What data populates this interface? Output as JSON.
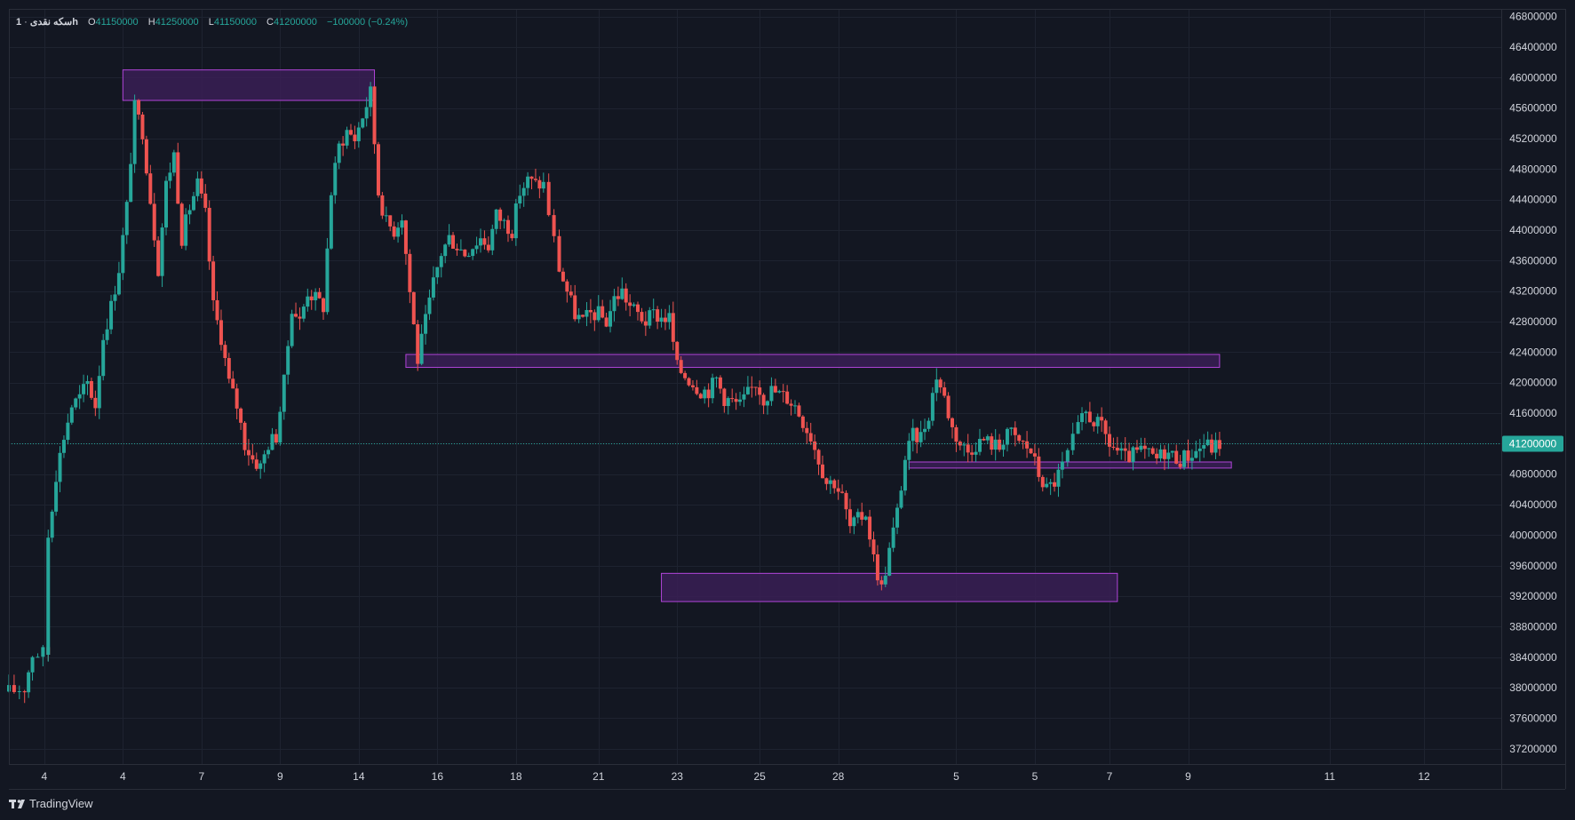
{
  "legend": {
    "symbol": "سکه نقدی",
    "timeframe": "1h",
    "o_label": "O",
    "o_value": "41150000",
    "h_label": "H",
    "h_value": "41250000",
    "l_label": "L",
    "l_value": "41150000",
    "c_label": "C",
    "c_value": "41200000",
    "change": "−100000 (−0.24%)"
  },
  "brand": {
    "name": "TradingView"
  },
  "colors": {
    "background": "#131722",
    "grid": "#1e2330",
    "up": "#26a69a",
    "down": "#ef5350",
    "zone_fill": "#3a1f55",
    "zone_stroke": "#b044d8",
    "axis_text": "#d1d4dc",
    "price_line": "#26a69a"
  },
  "chart_data": {
    "type": "candlestick",
    "y_axis": {
      "min": 37000000,
      "max": 46900000,
      "ticks": [
        37200000,
        37600000,
        38000000,
        38400000,
        38800000,
        39200000,
        39600000,
        40000000,
        40400000,
        40800000,
        41200000,
        41600000,
        42000000,
        42400000,
        42800000,
        43200000,
        43600000,
        44000000,
        44400000,
        44800000,
        45200000,
        45600000,
        46000000,
        46400000,
        46800000
      ],
      "tick_labels": [
        "37200000",
        "37600000",
        "38000000",
        "38400000",
        "38800000",
        "39200000",
        "39600000",
        "40000000",
        "40400000",
        "40800000",
        "41200000",
        "41600000",
        "42000000",
        "42400000",
        "42800000",
        "43200000",
        "43600000",
        "44000000",
        "44400000",
        "44800000",
        "45200000",
        "45600000",
        "46000000",
        "46400000",
        "46800000"
      ]
    },
    "x_axis": {
      "min": 0,
      "max": 190,
      "tick_labels": [
        "4",
        "4",
        "7",
        "9",
        "14",
        "16",
        "18",
        "21",
        "23",
        "25",
        "28",
        "5",
        "5",
        "7",
        "9",
        "11",
        "12"
      ],
      "tick_positions": [
        4.5,
        14.5,
        24.5,
        34.5,
        44.5,
        54.5,
        64.5,
        75,
        85,
        95.5,
        105.5,
        120.5,
        130.5,
        140,
        150,
        168,
        180
      ]
    },
    "last_price": {
      "value": 41200000,
      "label": "41200000"
    },
    "zones": [
      {
        "x_start": 14.5,
        "x_end": 46.5,
        "y_low": 45700000,
        "y_high": 46100000
      },
      {
        "x_start": 50.5,
        "x_end": 154,
        "y_low": 42200000,
        "y_high": 42370000
      },
      {
        "x_start": 114.5,
        "x_end": 155.5,
        "y_low": 40880000,
        "y_high": 40960000
      },
      {
        "x_start": 83,
        "x_end": 141,
        "y_low": 39130000,
        "y_high": 39500000
      }
    ],
    "key_points": [
      [
        0,
        37950000
      ],
      [
        2,
        38000000
      ],
      [
        3,
        38450000
      ],
      [
        5,
        38450000
      ],
      [
        5,
        40000000
      ],
      [
        6,
        40800000
      ],
      [
        7,
        41300000
      ],
      [
        8,
        41700000
      ],
      [
        9,
        41800000
      ],
      [
        10,
        42000000
      ],
      [
        11,
        41700000
      ],
      [
        12,
        42600000
      ],
      [
        13,
        43000000
      ],
      [
        14,
        43500000
      ],
      [
        15,
        44300000
      ],
      [
        16,
        45600000
      ],
      [
        17,
        45300000
      ],
      [
        18,
        44400000
      ],
      [
        19,
        43500000
      ],
      [
        20,
        44600000
      ],
      [
        21,
        45000000
      ],
      [
        22,
        43900000
      ],
      [
        23,
        44300000
      ],
      [
        24,
        44600000
      ],
      [
        25,
        44200000
      ],
      [
        26,
        43000000
      ],
      [
        27,
        42600000
      ],
      [
        28,
        42000000
      ],
      [
        29,
        41700000
      ],
      [
        30,
        41200000
      ],
      [
        31,
        41000000
      ],
      [
        32,
        40900000
      ],
      [
        33,
        41200000
      ],
      [
        34,
        41300000
      ],
      [
        35,
        42000000
      ],
      [
        36,
        43000000
      ],
      [
        37,
        42800000
      ],
      [
        38,
        43200000
      ],
      [
        39,
        43100000
      ],
      [
        40,
        43000000
      ],
      [
        41,
        44500000
      ],
      [
        42,
        45100000
      ],
      [
        43,
        45300000
      ],
      [
        44,
        45200000
      ],
      [
        45,
        45500000
      ],
      [
        46,
        45800000
      ],
      [
        47,
        44500000
      ],
      [
        48,
        44100000
      ],
      [
        49,
        44000000
      ],
      [
        50,
        44200000
      ],
      [
        51,
        43200000
      ],
      [
        52,
        42300000
      ],
      [
        53,
        42800000
      ],
      [
        54,
        43300000
      ],
      [
        55,
        43700000
      ],
      [
        56,
        43900000
      ],
      [
        57,
        43800000
      ],
      [
        58,
        43700000
      ],
      [
        59,
        43800000
      ],
      [
        60,
        43900000
      ],
      [
        61,
        43800000
      ],
      [
        62,
        44200000
      ],
      [
        63,
        44100000
      ],
      [
        64,
        44000000
      ],
      [
        65,
        44500000
      ],
      [
        66,
        44650000
      ],
      [
        67,
        44600000
      ],
      [
        68,
        44600000
      ],
      [
        70,
        43500000
      ],
      [
        71,
        43200000
      ],
      [
        72,
        42900000
      ],
      [
        73,
        42800000
      ],
      [
        74,
        42900000
      ],
      [
        75,
        42900000
      ],
      [
        76,
        42800000
      ],
      [
        77,
        43100000
      ],
      [
        78,
        43200000
      ],
      [
        79,
        43000000
      ],
      [
        80,
        42900000
      ],
      [
        81,
        42800000
      ],
      [
        82,
        42900000
      ],
      [
        83,
        42850000
      ],
      [
        84,
        42850000
      ],
      [
        85,
        42200000
      ],
      [
        86,
        42100000
      ],
      [
        87,
        42000000
      ],
      [
        88,
        41900000
      ],
      [
        89,
        41900000
      ],
      [
        90,
        42050000
      ],
      [
        91,
        41800000
      ],
      [
        92,
        41750000
      ],
      [
        93,
        41700000
      ],
      [
        94,
        41850000
      ],
      [
        95,
        42000000
      ],
      [
        96,
        41800000
      ],
      [
        97,
        41900000
      ],
      [
        98,
        41850000
      ],
      [
        99,
        41800000
      ],
      [
        100,
        41700000
      ],
      [
        101,
        41500000
      ],
      [
        102,
        41300000
      ],
      [
        103,
        41000000
      ],
      [
        104,
        40700000
      ],
      [
        105,
        40700000
      ],
      [
        106,
        40500000
      ],
      [
        107,
        40100000
      ],
      [
        108,
        40200000
      ],
      [
        109,
        40300000
      ],
      [
        110,
        39700000
      ],
      [
        111,
        39300000
      ],
      [
        112,
        39800000
      ],
      [
        113,
        40300000
      ],
      [
        114,
        41000000
      ],
      [
        115,
        41300000
      ],
      [
        116,
        41300000
      ],
      [
        117,
        41600000
      ],
      [
        118,
        42100000
      ],
      [
        119,
        41800000
      ],
      [
        120,
        41400000
      ],
      [
        121,
        41200000
      ],
      [
        122,
        41100000
      ],
      [
        123,
        41200000
      ],
      [
        124,
        41250000
      ],
      [
        125,
        41200000
      ],
      [
        126,
        41150000
      ],
      [
        127,
        41400000
      ],
      [
        128,
        41250000
      ],
      [
        129,
        41200000
      ],
      [
        130,
        41100000
      ],
      [
        131,
        40800000
      ],
      [
        132,
        40600000
      ],
      [
        133,
        40700000
      ],
      [
        134,
        40900000
      ],
      [
        136,
        41400000
      ],
      [
        137,
        41600000
      ],
      [
        138,
        41500000
      ],
      [
        139,
        41400000
      ],
      [
        140,
        41200000
      ],
      [
        141,
        41100000
      ],
      [
        142,
        41000000
      ],
      [
        143,
        41050000
      ],
      [
        144,
        41100000
      ],
      [
        145,
        41050000
      ],
      [
        146,
        41000000
      ],
      [
        147,
        41100000
      ],
      [
        148,
        41050000
      ],
      [
        149,
        41000000
      ],
      [
        150,
        41050000
      ],
      [
        151,
        41100000
      ],
      [
        152,
        41200000
      ],
      [
        153,
        41150000
      ],
      [
        154,
        41200000
      ]
    ]
  }
}
